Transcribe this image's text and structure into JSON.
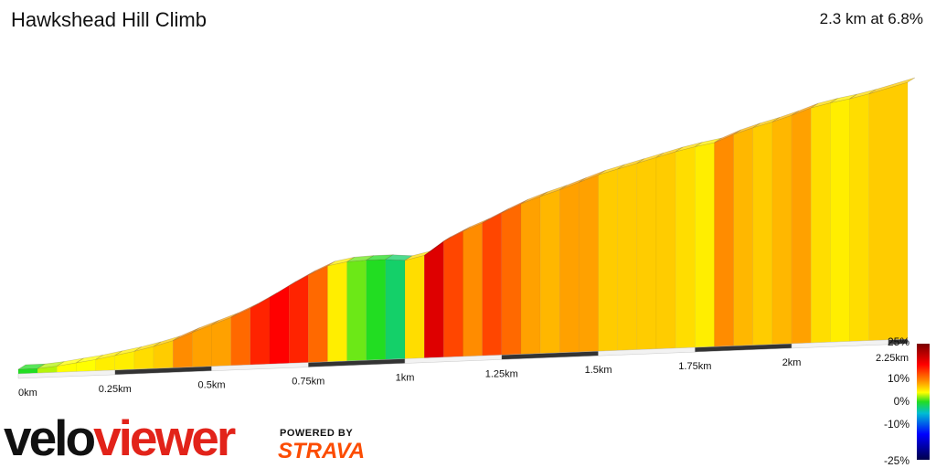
{
  "header": {
    "title": "Hawkshead Hill Climb",
    "stats": "2.3 km at 6.8%"
  },
  "branding": {
    "logo_part1": "velo",
    "logo_part2": "viewer",
    "powered_by": "POWERED BY",
    "strava": "STRAVA"
  },
  "chart_data": {
    "type": "area",
    "title": "Hawkshead Hill Climb",
    "x_unit": "km",
    "x_ticks": [
      "0km",
      "0.25km",
      "0.5km",
      "0.75km",
      "1km",
      "1.25km",
      "1.5km",
      "1.75km",
      "2km",
      "2.25km"
    ],
    "xlim": [
      0,
      2.3
    ],
    "gradient_scale": {
      "labels": [
        "25%",
        "10%",
        "0%",
        "-10%",
        "-25%"
      ],
      "colors": [
        "#8b0000",
        "#ff0000",
        "#ff8c00",
        "#ffff00",
        "#22dd22",
        "#00bcd4",
        "#0000ff",
        "#000060"
      ]
    },
    "segments": [
      {
        "km": 0.05,
        "grad": 0.0
      },
      {
        "km": 0.1,
        "grad": 2
      },
      {
        "km": 0.15,
        "grad": 3
      },
      {
        "km": 0.2,
        "grad": 3
      },
      {
        "km": 0.25,
        "grad": 4
      },
      {
        "km": 0.3,
        "grad": 4
      },
      {
        "km": 0.35,
        "grad": 5
      },
      {
        "km": 0.4,
        "grad": 6
      },
      {
        "km": 0.45,
        "grad": 9
      },
      {
        "km": 0.5,
        "grad": 8
      },
      {
        "km": 0.55,
        "grad": 8
      },
      {
        "km": 0.6,
        "grad": 10
      },
      {
        "km": 0.65,
        "grad": 12
      },
      {
        "km": 0.7,
        "grad": 13
      },
      {
        "km": 0.75,
        "grad": 12
      },
      {
        "km": 0.8,
        "grad": 10
      },
      {
        "km": 0.85,
        "grad": 4
      },
      {
        "km": 0.9,
        "grad": 1
      },
      {
        "km": 0.95,
        "grad": 0
      },
      {
        "km": 1.0,
        "grad": -2
      },
      {
        "km": 1.05,
        "grad": 5
      },
      {
        "km": 1.1,
        "grad": 16
      },
      {
        "km": 1.15,
        "grad": 11
      },
      {
        "km": 1.2,
        "grad": 9
      },
      {
        "km": 1.25,
        "grad": 11
      },
      {
        "km": 1.3,
        "grad": 10
      },
      {
        "km": 1.35,
        "grad": 8
      },
      {
        "km": 1.4,
        "grad": 7
      },
      {
        "km": 1.45,
        "grad": 8
      },
      {
        "km": 1.5,
        "grad": 8
      },
      {
        "km": 1.55,
        "grad": 6
      },
      {
        "km": 1.6,
        "grad": 6
      },
      {
        "km": 1.65,
        "grad": 6
      },
      {
        "km": 1.7,
        "grad": 6
      },
      {
        "km": 1.75,
        "grad": 5
      },
      {
        "km": 1.8,
        "grad": 4
      },
      {
        "km": 1.85,
        "grad": 9
      },
      {
        "km": 1.9,
        "grad": 7
      },
      {
        "km": 1.95,
        "grad": 6
      },
      {
        "km": 2.0,
        "grad": 7
      },
      {
        "km": 2.05,
        "grad": 8
      },
      {
        "km": 2.1,
        "grad": 5
      },
      {
        "km": 2.15,
        "grad": 4
      },
      {
        "km": 2.2,
        "grad": 5
      },
      {
        "km": 2.3,
        "grad": 6
      }
    ]
  }
}
